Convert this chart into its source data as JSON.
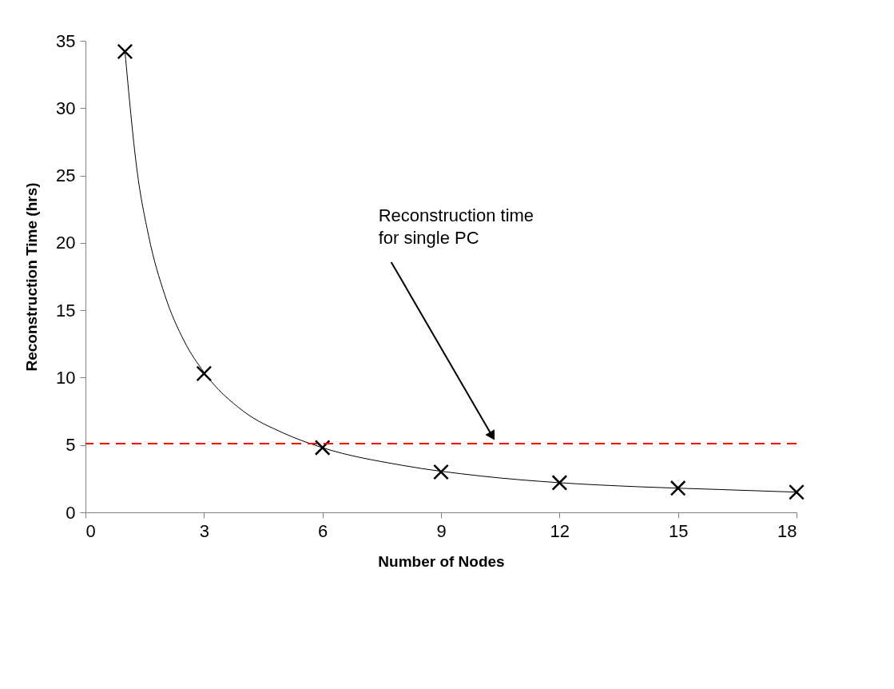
{
  "chart_data": {
    "type": "scatter",
    "xlabel": "Number of Nodes",
    "ylabel": "Reconstruction Time (hrs)",
    "x": [
      1,
      3,
      6,
      9,
      12,
      15,
      18
    ],
    "series": [
      {
        "color": "#000000",
        "marker": "cross",
        "values": [
          34.2,
          10.3,
          4.8,
          3.0,
          2.2,
          1.8,
          1.5
        ]
      },
      {
        "type": "line",
        "color": "#000000",
        "line_style": "solid",
        "x": [
          1,
          1.3,
          1.6,
          2,
          2.5,
          3,
          4,
          5,
          6,
          8,
          10,
          12,
          14,
          16,
          18
        ],
        "values": [
          34.2,
          25.5,
          20.5,
          16.2,
          12.7,
          10.4,
          7.5,
          5.9,
          4.8,
          3.5,
          2.7,
          2.2,
          1.9,
          1.7,
          1.5
        ]
      }
    ],
    "xlim": [
      0,
      18
    ],
    "xticks": [
      0,
      3,
      6,
      9,
      12,
      15,
      18
    ],
    "ylim": [
      0,
      35
    ],
    "yticks": [
      0,
      5,
      10,
      15,
      20,
      25,
      30,
      35
    ],
    "ref_lines": [
      {
        "axis": "y",
        "value": 5.1,
        "color": "#ff0000",
        "line_style": "dashed"
      }
    ],
    "annotations": [
      "Reconstruction time\nfor single PC"
    ],
    "grid": false
  }
}
